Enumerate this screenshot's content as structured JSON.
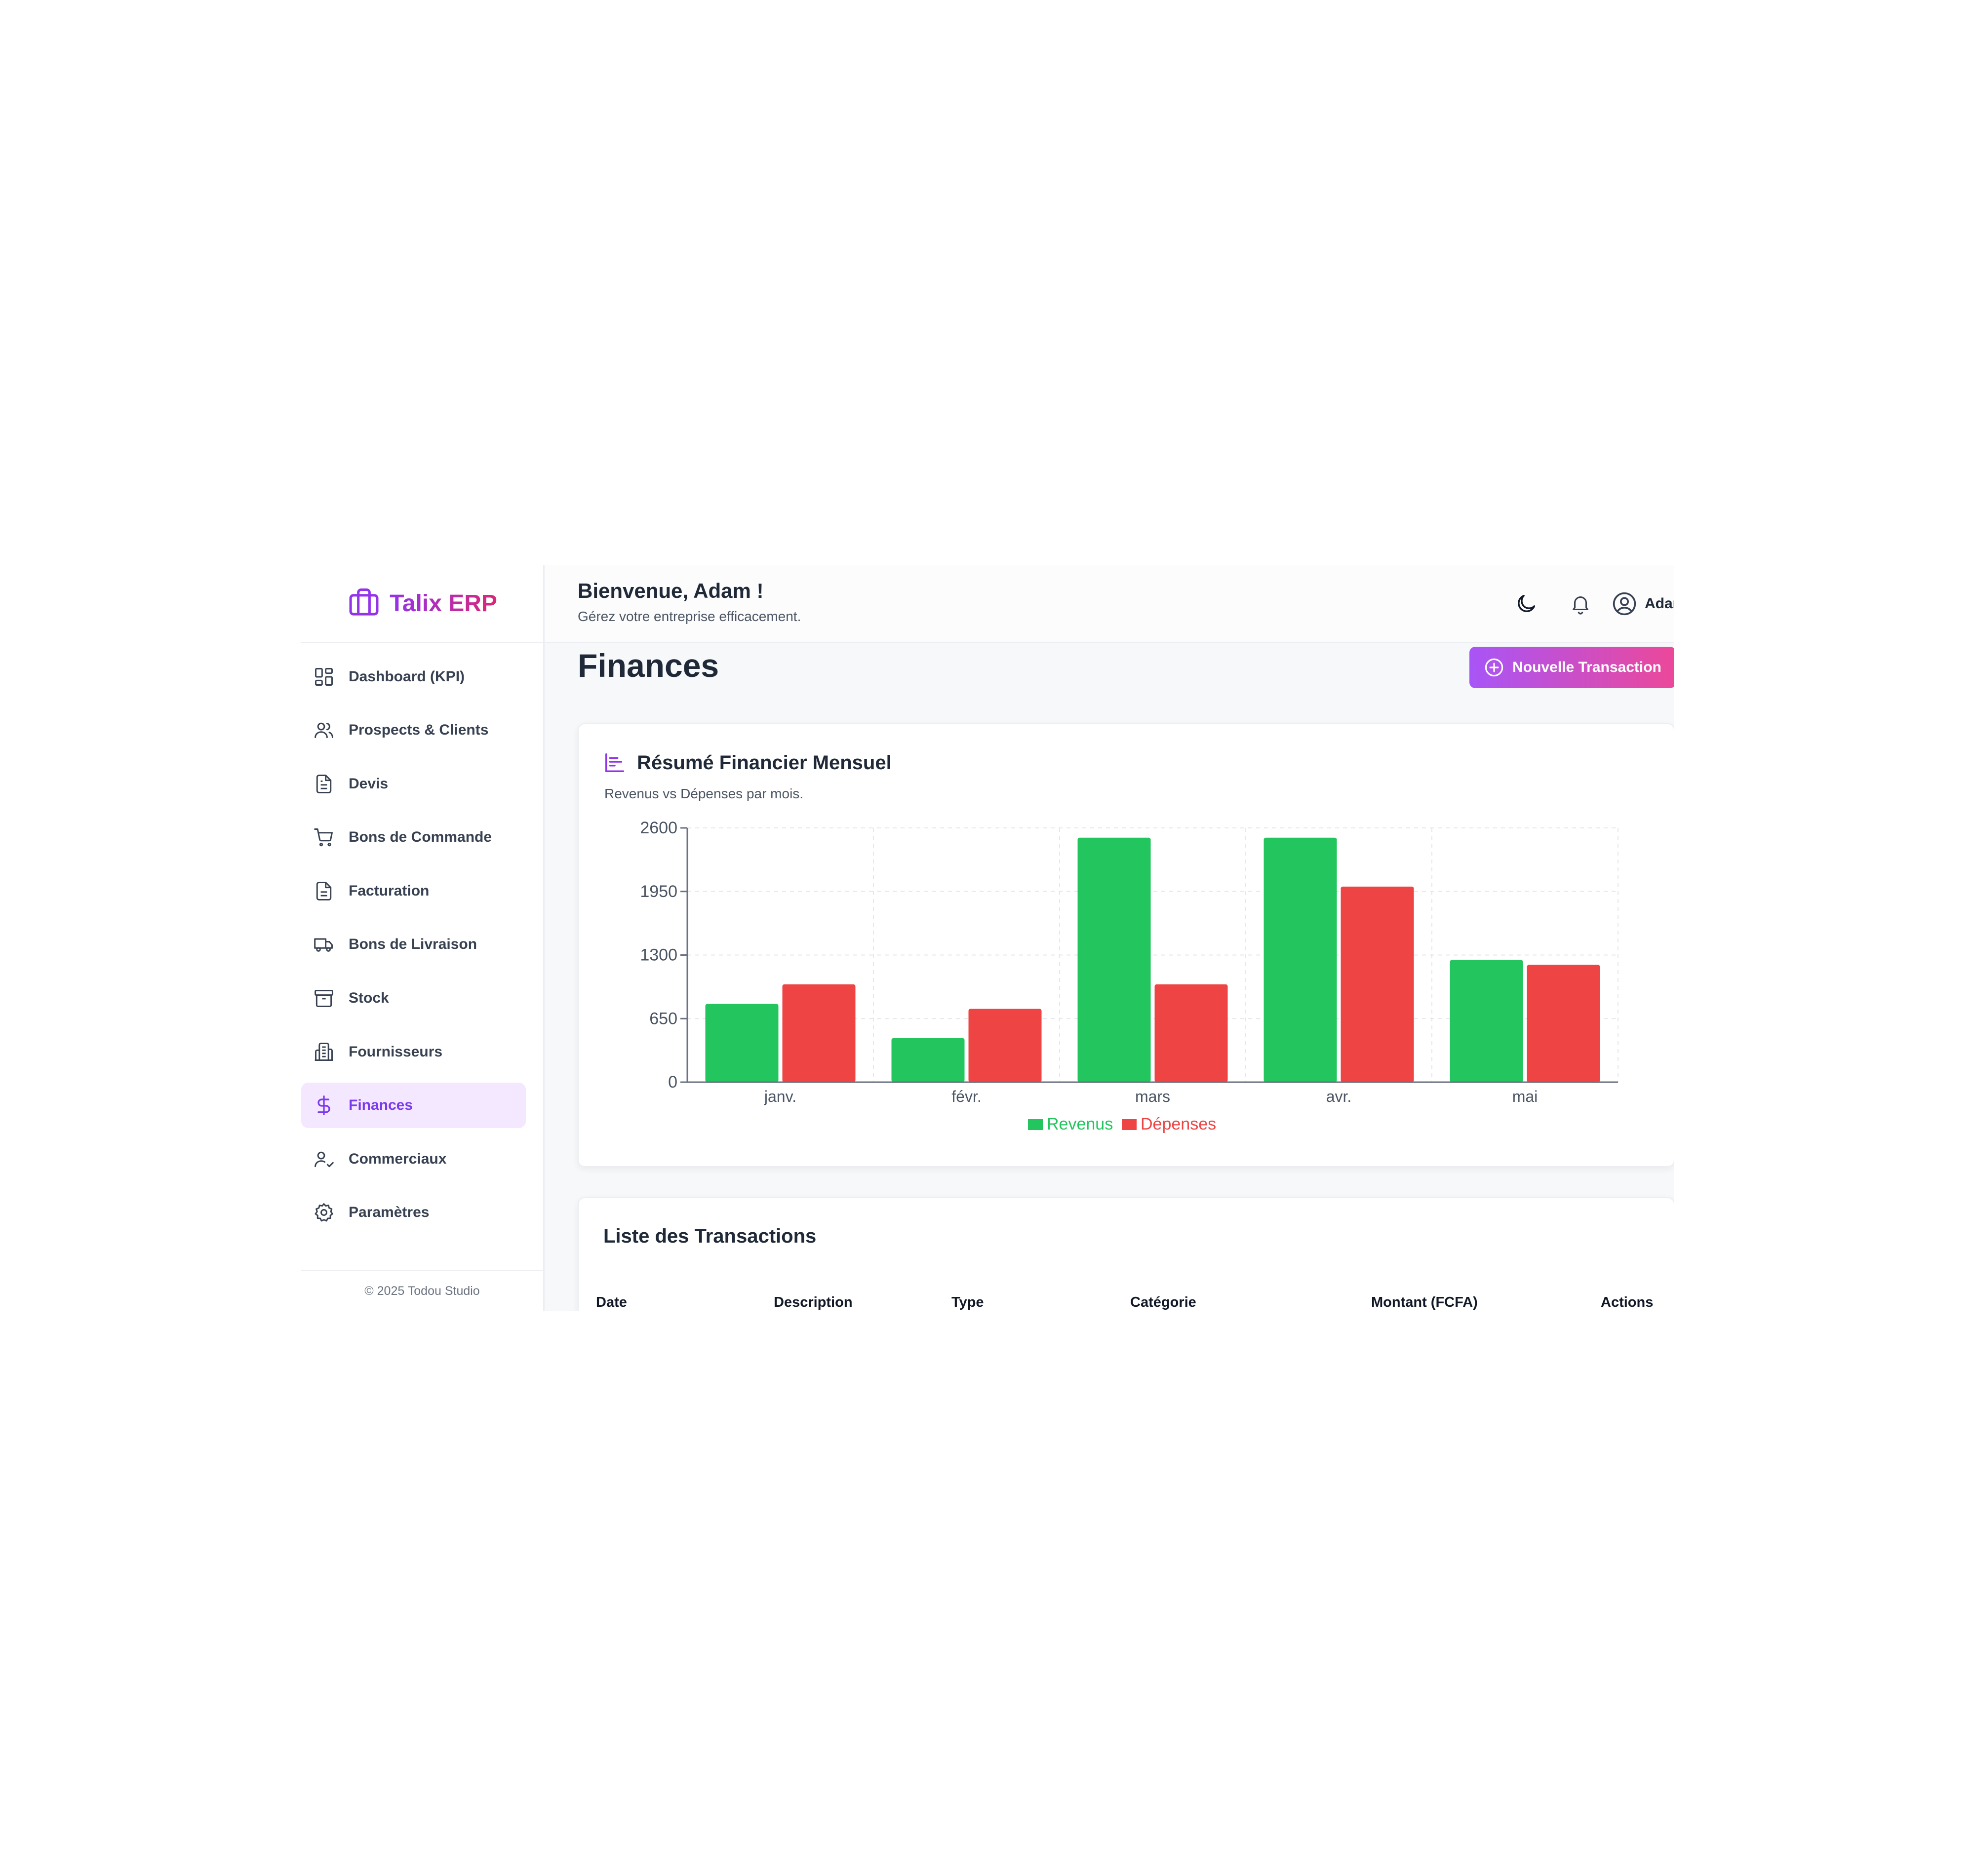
{
  "sidebar": {
    "brand": "Talix ERP",
    "items": [
      {
        "label": "Dashboard (KPI)"
      },
      {
        "label": "Prospects & Clients"
      },
      {
        "label": "Devis"
      },
      {
        "label": "Bons de Commande"
      },
      {
        "label": "Facturation"
      },
      {
        "label": "Bons de Livraison"
      },
      {
        "label": "Stock"
      },
      {
        "label": "Fournisseurs"
      },
      {
        "label": "Finances"
      },
      {
        "label": "Commerciaux"
      },
      {
        "label": "Paramètres"
      }
    ],
    "active_index": 8,
    "footer": "© 2025 Todou Studio"
  },
  "header": {
    "welcome": "Bienvenue, Adam !",
    "subtitle": "Gérez votre entreprise efficacement.",
    "user_name": "Adam",
    "icons": [
      "moon-icon",
      "bell-icon",
      "user-circle-icon",
      "chevron-down-icon"
    ]
  },
  "main": {
    "page_title": "Finances",
    "new_transaction_label": "Nouvelle Transaction",
    "chart_card": {
      "title": "Résumé Financier Mensuel",
      "subtitle": "Revenus vs Dépenses par mois."
    },
    "transactions": {
      "title": "Liste des Transactions",
      "columns": [
        "Date",
        "Description",
        "Type",
        "Catégorie",
        "Montant (FCFA)",
        "Actions"
      ]
    }
  },
  "colors": {
    "accent": "#a855f7",
    "accent_pink": "#ec4899",
    "revenus": "#22c55e",
    "depenses": "#ef4444"
  },
  "chart_data": {
    "type": "bar",
    "categories": [
      "janv.",
      "févr.",
      "mars",
      "avr.",
      "mai"
    ],
    "series": [
      {
        "name": "Revenus",
        "values": [
          800,
          450,
          2500,
          2500,
          1250
        ],
        "color": "#22c55e"
      },
      {
        "name": "Dépenses",
        "values": [
          1000,
          750,
          1000,
          2000,
          1200
        ],
        "color": "#ef4444"
      }
    ],
    "yticks": [
      0,
      650,
      1300,
      1950,
      2600
    ],
    "ylim": [
      0,
      2600
    ],
    "grid": true,
    "legend_position": "bottom-center"
  }
}
